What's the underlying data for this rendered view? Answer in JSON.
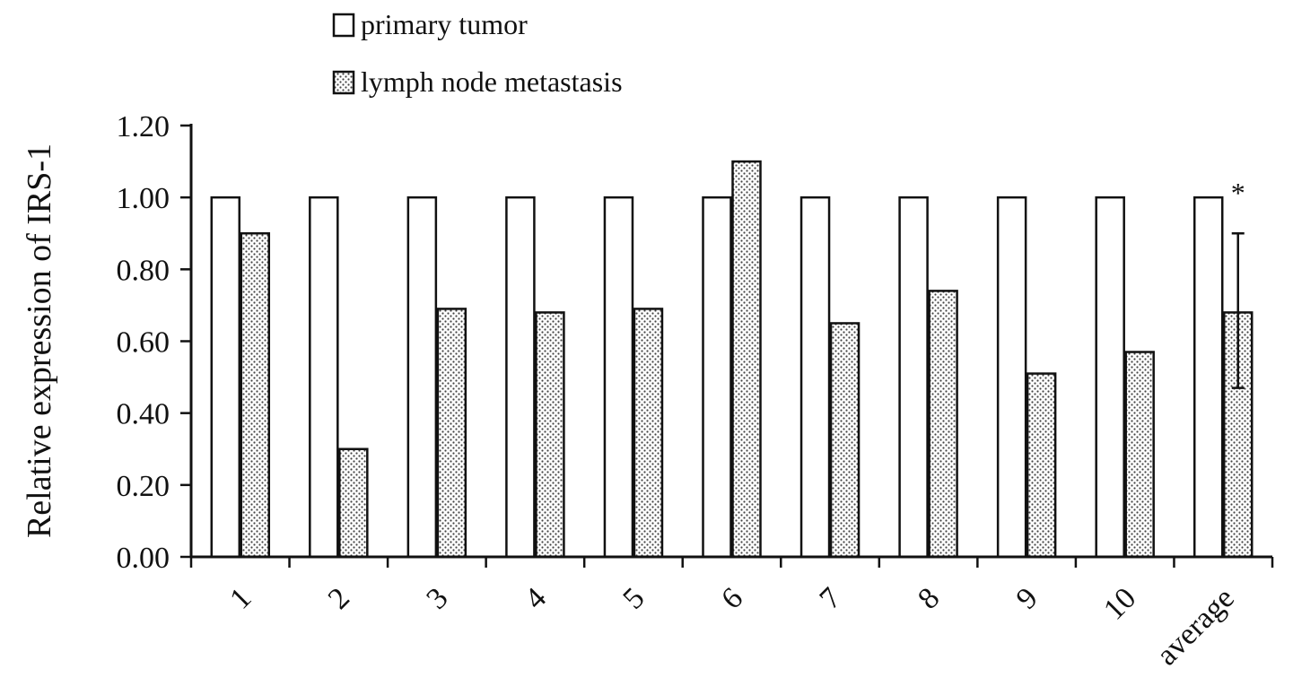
{
  "chart_data": {
    "type": "bar",
    "categories": [
      "1",
      "2",
      "3",
      "4",
      "5",
      "6",
      "7",
      "8",
      "9",
      "10",
      "average"
    ],
    "series": [
      {
        "name": "primary tumor",
        "values": [
          1.0,
          1.0,
          1.0,
          1.0,
          1.0,
          1.0,
          1.0,
          1.0,
          1.0,
          1.0,
          1.0
        ],
        "fill": "#ffffff",
        "pattern": "none"
      },
      {
        "name": "lymph node metastasis",
        "values": [
          0.9,
          0.3,
          0.69,
          0.68,
          0.69,
          1.1,
          0.65,
          0.74,
          0.51,
          0.57,
          0.68
        ],
        "fill": "#ffffff",
        "pattern": "dots"
      }
    ],
    "error_bars": [
      {
        "series": "lymph node metastasis",
        "category": "average",
        "low": 0.47,
        "high": 0.9
      }
    ],
    "annotations": [
      {
        "category": "average",
        "text": "*"
      }
    ],
    "ylabel": "Relative expression of IRS-1",
    "xlabel": "",
    "ylim": [
      0,
      1.2
    ],
    "yticks": [
      "0.00",
      "0.20",
      "0.40",
      "0.60",
      "0.80",
      "1.00",
      "1.20"
    ],
    "grid": false,
    "legend_position": "top-center",
    "colors": {
      "bar_stroke": "#111111",
      "dot": "#444444",
      "axis": "#111111"
    }
  }
}
